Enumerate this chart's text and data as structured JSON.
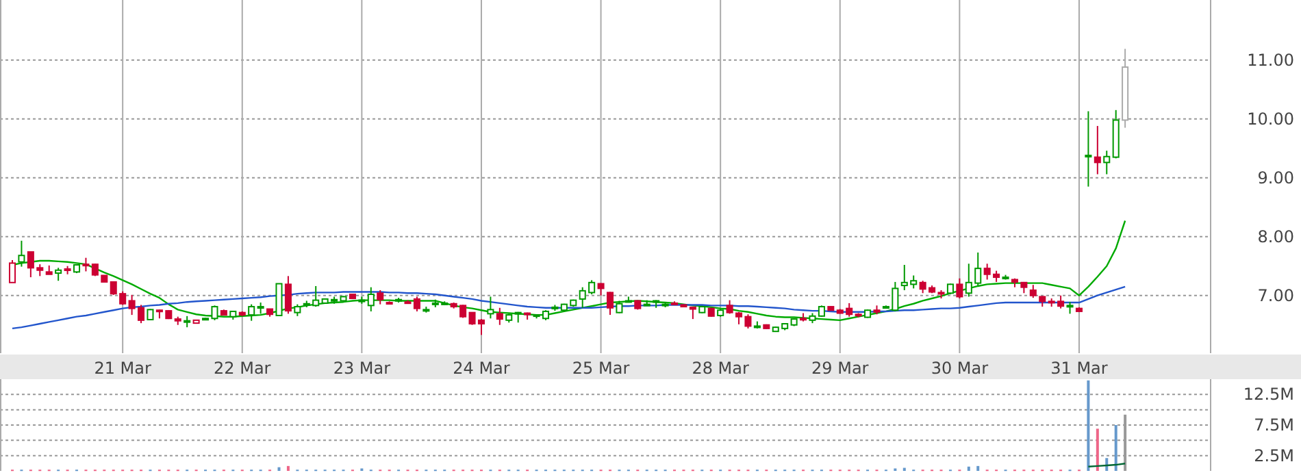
{
  "chart_data": [
    {
      "type": "candlestick",
      "categories": [
        null,
        null,
        null,
        null,
        null,
        null,
        null,
        null,
        null,
        null,
        null,
        null,
        "21 Mar",
        null,
        null,
        null,
        null,
        null,
        null,
        null,
        null,
        null,
        null,
        null,
        null,
        "22 Mar",
        null,
        null,
        null,
        null,
        null,
        null,
        null,
        null,
        null,
        null,
        null,
        null,
        "23 Mar",
        null,
        null,
        null,
        null,
        null,
        null,
        null,
        null,
        null,
        null,
        null,
        null,
        "24 Mar",
        null,
        null,
        null,
        null,
        null,
        null,
        null,
        null,
        null,
        null,
        null,
        null,
        "25 Mar",
        null,
        null,
        null,
        null,
        null,
        null,
        null,
        null,
        null,
        null,
        null,
        null,
        "28 Mar",
        null,
        null,
        null,
        null,
        null,
        null,
        null,
        null,
        null,
        null,
        null,
        null,
        "29 Mar",
        null,
        null,
        null,
        null,
        null,
        null,
        null,
        null,
        null,
        null,
        null,
        null,
        "30 Mar",
        null,
        null,
        null,
        null,
        null,
        null,
        null,
        null,
        null,
        null,
        null,
        null,
        "31 Mar",
        null,
        null,
        null,
        null,
        null,
        null,
        null,
        null,
        null,
        null,
        null,
        null,
        null,
        null
      ],
      "ohlc": [
        [
          7.22,
          7.6,
          7.22,
          7.55
        ],
        [
          7.57,
          7.93,
          7.49,
          7.68
        ],
        [
          7.74,
          7.74,
          7.31,
          7.47
        ],
        [
          7.47,
          7.53,
          7.33,
          7.43
        ],
        [
          7.4,
          7.51,
          7.36,
          7.36
        ],
        [
          7.38,
          7.47,
          7.25,
          7.43
        ],
        [
          7.45,
          7.5,
          7.36,
          7.43
        ],
        [
          7.4,
          7.53,
          7.38,
          7.52
        ],
        [
          7.53,
          7.64,
          7.41,
          7.51
        ],
        [
          7.53,
          7.54,
          7.33,
          7.35
        ],
        [
          7.34,
          7.34,
          7.23,
          7.23
        ],
        [
          7.23,
          7.23,
          7.01,
          7.03
        ],
        [
          7.03,
          7.07,
          6.84,
          6.86
        ],
        [
          6.91,
          7.01,
          6.67,
          6.78
        ],
        [
          6.79,
          6.84,
          6.53,
          6.58
        ],
        [
          6.59,
          6.77,
          6.58,
          6.76
        ],
        [
          6.75,
          6.76,
          6.61,
          6.73
        ],
        [
          6.74,
          6.75,
          6.6,
          6.61
        ],
        [
          6.6,
          6.64,
          6.5,
          6.57
        ],
        [
          6.55,
          6.65,
          6.46,
          6.57
        ],
        [
          6.53,
          6.58,
          6.53,
          6.58
        ],
        [
          6.61,
          6.62,
          6.6,
          6.61
        ],
        [
          6.61,
          6.83,
          6.58,
          6.81
        ],
        [
          6.74,
          6.76,
          6.66,
          6.67
        ],
        [
          6.64,
          6.74,
          6.59,
          6.73
        ],
        [
          6.71,
          6.73,
          6.65,
          6.67
        ],
        [
          6.67,
          6.85,
          6.57,
          6.81
        ],
        [
          6.8,
          6.88,
          6.69,
          6.81
        ],
        [
          6.77,
          6.77,
          6.64,
          6.68
        ],
        [
          6.66,
          7.2,
          6.66,
          7.2
        ],
        [
          7.19,
          7.33,
          6.69,
          6.74
        ],
        [
          6.71,
          6.85,
          6.65,
          6.81
        ],
        [
          6.84,
          6.91,
          6.8,
          6.86
        ],
        [
          6.83,
          7.16,
          6.81,
          6.92
        ],
        [
          6.87,
          6.95,
          6.86,
          6.94
        ],
        [
          6.92,
          6.98,
          6.86,
          6.93
        ],
        [
          6.91,
          6.99,
          6.9,
          6.98
        ],
        [
          7.02,
          7.02,
          6.95,
          6.95
        ],
        [
          6.91,
          6.98,
          6.86,
          6.92
        ],
        [
          6.83,
          7.14,
          6.73,
          7.02
        ],
        [
          7.04,
          7.09,
          6.85,
          6.93
        ],
        [
          6.88,
          6.9,
          6.85,
          6.87
        ],
        [
          6.92,
          6.96,
          6.88,
          6.93
        ],
        [
          6.89,
          6.92,
          6.86,
          6.88
        ],
        [
          6.94,
          6.98,
          6.73,
          6.78
        ],
        [
          6.74,
          6.81,
          6.71,
          6.76
        ],
        [
          6.85,
          6.93,
          6.8,
          6.87
        ],
        [
          6.86,
          6.9,
          6.84,
          6.87
        ],
        [
          6.86,
          6.88,
          6.78,
          6.81
        ],
        [
          6.83,
          6.84,
          6.62,
          6.64
        ],
        [
          6.71,
          6.71,
          6.5,
          6.52
        ],
        [
          6.58,
          6.6,
          6.33,
          6.52
        ],
        [
          6.69,
          6.98,
          6.61,
          6.76
        ],
        [
          6.69,
          6.79,
          6.5,
          6.6
        ],
        [
          6.58,
          6.69,
          6.54,
          6.67
        ],
        [
          6.7,
          6.72,
          6.54,
          6.71
        ],
        [
          6.7,
          6.71,
          6.59,
          6.68
        ],
        [
          6.66,
          6.68,
          6.61,
          6.67
        ],
        [
          6.61,
          6.75,
          6.58,
          6.73
        ],
        [
          6.79,
          6.84,
          6.74,
          6.8
        ],
        [
          6.75,
          6.86,
          6.73,
          6.85
        ],
        [
          6.83,
          6.93,
          6.81,
          6.92
        ],
        [
          6.94,
          7.14,
          6.79,
          7.08
        ],
        [
          7.05,
          7.26,
          7.02,
          7.22
        ],
        [
          7.2,
          7.21,
          7.0,
          7.12
        ],
        [
          7.05,
          7.06,
          6.67,
          6.79
        ],
        [
          6.71,
          6.91,
          6.7,
          6.86
        ],
        [
          6.9,
          6.98,
          6.88,
          6.91
        ],
        [
          6.91,
          6.92,
          6.76,
          6.78
        ],
        [
          6.84,
          6.92,
          6.83,
          6.85
        ],
        [
          6.9,
          6.92,
          6.79,
          6.91
        ],
        [
          6.84,
          6.89,
          6.8,
          6.85
        ],
        [
          6.87,
          6.9,
          6.84,
          6.86
        ],
        [
          6.84,
          6.85,
          6.8,
          6.81
        ],
        [
          6.8,
          6.81,
          6.6,
          6.77
        ],
        [
          6.71,
          6.82,
          6.7,
          6.81
        ],
        [
          6.78,
          6.79,
          6.64,
          6.65
        ],
        [
          6.66,
          6.77,
          6.64,
          6.75
        ],
        [
          6.83,
          6.92,
          6.69,
          6.71
        ],
        [
          6.7,
          6.72,
          6.51,
          6.64
        ],
        [
          6.64,
          6.68,
          6.44,
          6.48
        ],
        [
          6.47,
          6.56,
          6.44,
          6.48
        ],
        [
          6.5,
          6.51,
          6.43,
          6.44
        ],
        [
          6.39,
          6.47,
          6.38,
          6.46
        ],
        [
          6.44,
          6.53,
          6.41,
          6.52
        ],
        [
          6.5,
          6.61,
          6.48,
          6.6
        ],
        [
          6.61,
          6.7,
          6.56,
          6.59
        ],
        [
          6.58,
          6.7,
          6.53,
          6.65
        ],
        [
          6.65,
          6.83,
          6.64,
          6.81
        ],
        [
          6.81,
          6.82,
          6.74,
          6.75
        ],
        [
          6.75,
          6.77,
          6.69,
          6.7
        ],
        [
          6.78,
          6.87,
          6.64,
          6.68
        ],
        [
          6.68,
          6.7,
          6.63,
          6.67
        ],
        [
          6.63,
          6.76,
          6.62,
          6.75
        ],
        [
          6.75,
          6.83,
          6.68,
          6.72
        ],
        [
          6.8,
          6.83,
          6.78,
          6.81
        ],
        [
          6.75,
          7.23,
          6.73,
          7.12
        ],
        [
          7.17,
          7.52,
          7.09,
          7.22
        ],
        [
          7.19,
          7.34,
          7.12,
          7.25
        ],
        [
          7.22,
          7.25,
          7.04,
          7.11
        ],
        [
          7.13,
          7.17,
          7.04,
          7.06
        ],
        [
          7.05,
          7.09,
          6.95,
          7.03
        ],
        [
          7.04,
          7.2,
          7.02,
          7.19
        ],
        [
          7.19,
          7.29,
          6.95,
          6.98
        ],
        [
          7.04,
          7.54,
          6.98,
          7.22
        ],
        [
          7.21,
          7.73,
          7.17,
          7.46
        ],
        [
          7.46,
          7.54,
          7.27,
          7.36
        ],
        [
          7.36,
          7.42,
          7.23,
          7.31
        ],
        [
          7.3,
          7.35,
          7.27,
          7.31
        ],
        [
          7.27,
          7.29,
          7.14,
          7.23
        ],
        [
          7.22,
          7.23,
          7.04,
          7.14
        ],
        [
          7.09,
          7.18,
          6.96,
          7.0
        ],
        [
          6.98,
          6.99,
          6.81,
          6.9
        ],
        [
          6.9,
          6.95,
          6.81,
          6.89
        ],
        [
          6.9,
          7.0,
          6.78,
          6.82
        ],
        [
          6.82,
          6.89,
          6.69,
          6.83
        ],
        [
          6.78,
          6.8,
          6.72,
          6.73
        ],
        [
          9.36,
          10.13,
          8.85,
          9.38
        ],
        [
          9.35,
          9.88,
          9.06,
          9.26
        ],
        [
          9.26,
          9.46,
          9.06,
          9.36
        ],
        [
          9.35,
          10.15,
          9.33,
          9.98
        ],
        [
          9.98,
          11.19,
          9.85,
          10.88
        ],
        null,
        null,
        null,
        null,
        null,
        null,
        null,
        null,
        null
      ],
      "colors": [
        "#cc0033",
        "#009900",
        "#cc0033",
        "#cc0033",
        "#cc0033",
        "#009900",
        "#cc0033",
        "#009900",
        "#cc0033",
        "#cc0033",
        "#cc0033",
        "#cc0033",
        "#cc0033",
        "#cc0033",
        "#cc0033",
        "#009900",
        "#cc0033",
        "#cc0033",
        "#cc0033",
        "#009900",
        "#cc0033",
        "#009900",
        "#009900",
        "#cc0033",
        "#009900",
        "#cc0033",
        "#009900",
        "#009900",
        "#cc0033",
        "#009900",
        "#cc0033",
        "#009900",
        "#009900",
        "#009900",
        "#009900",
        "#009900",
        "#009900",
        "#cc0033",
        "#009900",
        "#009900",
        "#cc0033",
        "#cc0033",
        "#009900",
        "#cc0033",
        "#cc0033",
        "#009900",
        "#009900",
        "#009900",
        "#cc0033",
        "#cc0033",
        "#cc0033",
        "#cc0033",
        "#009900",
        "#cc0033",
        "#009900",
        "#009900",
        "#cc0033",
        "#009900",
        "#009900",
        "#009900",
        "#009900",
        "#009900",
        "#009900",
        "#009900",
        "#cc0033",
        "#cc0033",
        "#009900",
        "#009900",
        "#cc0033",
        "#009900",
        "#009900",
        "#009900",
        "#cc0033",
        "#cc0033",
        "#cc0033",
        "#009900",
        "#cc0033",
        "#009900",
        "#cc0033",
        "#cc0033",
        "#cc0033",
        "#009900",
        "#cc0033",
        "#009900",
        "#009900",
        "#009900",
        "#cc0033",
        "#009900",
        "#009900",
        "#cc0033",
        "#cc0033",
        "#cc0033",
        "#cc0033",
        "#009900",
        "#cc0033",
        "#009900",
        "#009900",
        "#009900",
        "#009900",
        "#cc0033",
        "#cc0033",
        "#cc0033",
        "#009900",
        "#cc0033",
        "#009900",
        "#009900",
        "#cc0033",
        "#cc0033",
        "#009900",
        "#cc0033",
        "#cc0033",
        "#cc0033",
        "#cc0033",
        "#cc0033",
        "#cc0033",
        "#009900",
        "#cc0033",
        "#009900",
        "#cc0033",
        "#009900",
        "#009900",
        "#aaaaaa",
        null,
        null,
        null,
        null,
        null,
        null,
        null,
        null,
        null
      ],
      "series": [
        {
          "type": "line",
          "color": "#00aa00",
          "values": [
            7.52,
            7.55,
            7.57,
            7.59,
            7.59,
            7.58,
            7.57,
            7.55,
            7.53,
            7.46,
            7.39,
            7.33,
            7.26,
            7.19,
            7.11,
            7.03,
            6.96,
            6.85,
            6.76,
            6.72,
            6.68,
            6.66,
            6.65,
            6.64,
            6.64,
            6.65,
            6.66,
            6.67,
            6.7,
            6.74,
            6.78,
            6.8,
            6.83,
            6.85,
            6.87,
            6.88,
            6.89,
            6.91,
            6.92,
            6.92,
            6.92,
            6.92,
            6.91,
            6.91,
            6.91,
            6.91,
            6.91,
            6.87,
            6.83,
            6.8,
            6.78,
            6.75,
            6.72,
            6.71,
            6.7,
            6.69,
            6.68,
            6.67,
            6.67,
            6.7,
            6.73,
            6.76,
            6.79,
            6.82,
            6.85,
            6.88,
            6.89,
            6.9,
            6.91,
            6.9,
            6.89,
            6.88,
            6.87,
            6.85,
            6.83,
            6.82,
            6.8,
            6.78,
            6.77,
            6.74,
            6.72,
            6.69,
            6.66,
            6.64,
            6.63,
            6.63,
            6.62,
            6.61,
            6.6,
            6.59,
            6.58,
            6.61,
            6.64,
            6.67,
            6.7,
            6.73,
            6.77,
            6.82,
            6.86,
            6.91,
            6.95,
            6.99,
            7.04,
            7.08,
            7.12,
            7.16,
            7.19,
            7.2,
            7.21,
            7.21,
            7.21,
            7.21,
            7.21,
            7.18,
            7.15,
            7.12,
            7.0,
            7.15,
            7.32,
            7.5,
            7.8,
            8.27,
            null,
            null,
            null,
            null,
            null,
            null,
            null,
            null,
            null
          ]
        },
        {
          "type": "line",
          "color": "#2255cc",
          "values": [
            6.44,
            6.46,
            6.49,
            6.52,
            6.55,
            6.58,
            6.61,
            6.64,
            6.66,
            6.69,
            6.72,
            6.75,
            6.78,
            6.8,
            6.81,
            6.83,
            6.84,
            6.86,
            6.87,
            6.89,
            6.9,
            6.91,
            6.92,
            6.93,
            6.94,
            6.95,
            6.96,
            6.97,
            6.99,
            7.0,
            7.01,
            7.03,
            7.04,
            7.05,
            7.05,
            7.05,
            7.06,
            7.06,
            7.06,
            7.06,
            7.06,
            7.05,
            7.05,
            7.04,
            7.04,
            7.03,
            7.02,
            7.0,
            6.98,
            6.96,
            6.94,
            6.91,
            6.89,
            6.87,
            6.85,
            6.83,
            6.81,
            6.8,
            6.79,
            6.79,
            6.79,
            6.79,
            6.79,
            6.79,
            6.8,
            6.81,
            6.82,
            6.82,
            6.83,
            6.83,
            6.83,
            6.84,
            6.84,
            6.84,
            6.84,
            6.84,
            6.83,
            6.83,
            6.83,
            6.82,
            6.82,
            6.81,
            6.8,
            6.79,
            6.78,
            6.76,
            6.75,
            6.74,
            6.74,
            6.73,
            6.72,
            6.72,
            6.72,
            6.72,
            6.73,
            6.73,
            6.74,
            6.75,
            6.75,
            6.76,
            6.77,
            6.78,
            6.78,
            6.79,
            6.81,
            6.83,
            6.85,
            6.87,
            6.88,
            6.88,
            6.88,
            6.88,
            6.88,
            6.88,
            6.88,
            6.88,
            6.88,
            6.94,
            7.0,
            7.05,
            7.1,
            7.15,
            null,
            null,
            null,
            null,
            null,
            null,
            null,
            null,
            null
          ]
        }
      ],
      "ylim": [
        6.02,
        12.02
      ],
      "yticks": [
        {
          "value": 7,
          "label": "7.00"
        },
        {
          "value": 8,
          "label": "8.00"
        },
        {
          "value": 9,
          "label": "9.00"
        },
        {
          "value": 10,
          "label": "10.00"
        },
        {
          "value": 11,
          "label": "11.00"
        }
      ],
      "grid": true
    },
    {
      "type": "bar",
      "categories": [
        null,
        null,
        null,
        null,
        null,
        null,
        null,
        null,
        null,
        null,
        null,
        null,
        null,
        null,
        null,
        null,
        null,
        null,
        null,
        null,
        null,
        null,
        null,
        null,
        null,
        null,
        null,
        null,
        null,
        null,
        null,
        null,
        null,
        null,
        null,
        null,
        null,
        null,
        null,
        null,
        null,
        null,
        null,
        null,
        null,
        null,
        null,
        null,
        null,
        null,
        null,
        null,
        null,
        null,
        null,
        null,
        null,
        null,
        null,
        null,
        null,
        null,
        null,
        null,
        null,
        null,
        null,
        null,
        null,
        null,
        null,
        null,
        null,
        null,
        null,
        null,
        null,
        null,
        null,
        null,
        null,
        null,
        null,
        null,
        null,
        null,
        null,
        null,
        null,
        null,
        null,
        null,
        null,
        null,
        null,
        null,
        null,
        null,
        null,
        null,
        null,
        null,
        null,
        null,
        null,
        null,
        null,
        null,
        null,
        null,
        null,
        null,
        null,
        null,
        null,
        null,
        null,
        null,
        null,
        null,
        null,
        null,
        null,
        null,
        null,
        null,
        null,
        null,
        null,
        null,
        null
      ],
      "series": [
        {
          "type": "bar",
          "colors": [
            "#ee6688",
            "#6699cc",
            "#ee6688",
            "#ee6688",
            "#ee6688",
            "#6699cc",
            "#ee6688",
            "#6699cc",
            "#ee6688",
            "#ee6688",
            "#ee6688",
            "#ee6688",
            "#ee6688",
            "#ee6688",
            "#ee6688",
            "#6699cc",
            "#ee6688",
            "#ee6688",
            "#ee6688",
            "#6699cc",
            "#ee6688",
            "#6699cc",
            "#6699cc",
            "#ee6688",
            "#6699cc",
            "#ee6688",
            "#6699cc",
            "#6699cc",
            "#ee6688",
            "#6699cc",
            "#ee6688",
            "#6699cc",
            "#6699cc",
            "#6699cc",
            "#6699cc",
            "#6699cc",
            "#6699cc",
            "#ee6688",
            "#6699cc",
            "#6699cc",
            "#ee6688",
            "#ee6688",
            "#6699cc",
            "#ee6688",
            "#ee6688",
            "#6699cc",
            "#6699cc",
            "#6699cc",
            "#ee6688",
            "#ee6688",
            "#ee6688",
            "#ee6688",
            "#6699cc",
            "#ee6688",
            "#6699cc",
            "#6699cc",
            "#ee6688",
            "#6699cc",
            "#6699cc",
            "#6699cc",
            "#6699cc",
            "#6699cc",
            "#6699cc",
            "#6699cc",
            "#ee6688",
            "#ee6688",
            "#6699cc",
            "#6699cc",
            "#ee6688",
            "#6699cc",
            "#6699cc",
            "#6699cc",
            "#ee6688",
            "#ee6688",
            "#ee6688",
            "#6699cc",
            "#ee6688",
            "#6699cc",
            "#ee6688",
            "#ee6688",
            "#ee6688",
            "#6699cc",
            "#ee6688",
            "#6699cc",
            "#6699cc",
            "#6699cc",
            "#ee6688",
            "#6699cc",
            "#6699cc",
            "#ee6688",
            "#ee6688",
            "#ee6688",
            "#ee6688",
            "#6699cc",
            "#ee6688",
            "#6699cc",
            "#6699cc",
            "#6699cc",
            "#6699cc",
            "#ee6688",
            "#ee6688",
            "#ee6688",
            "#6699cc",
            "#ee6688",
            "#6699cc",
            "#6699cc",
            "#ee6688",
            "#ee6688",
            "#6699cc",
            "#ee6688",
            "#ee6688",
            "#ee6688",
            "#ee6688",
            "#ee6688",
            "#ee6688",
            "#6699cc",
            "#ee6688",
            "#6699cc",
            "#ee6688",
            "#6699cc",
            "#6699cc",
            "#999999",
            null,
            null,
            null,
            null,
            null,
            null,
            null,
            null,
            null
          ],
          "values": [
            0.2,
            0.2,
            0.2,
            0.2,
            0.2,
            0.2,
            0.2,
            0.2,
            0.2,
            0.2,
            0.2,
            0.2,
            0.2,
            0.2,
            0.2,
            0.2,
            0.2,
            0.2,
            0.2,
            0.2,
            0.2,
            0.2,
            0.2,
            0.2,
            0.2,
            0.2,
            0.2,
            0.2,
            0.2,
            0.6,
            0.8,
            0.2,
            0.2,
            0.2,
            0.2,
            0.2,
            0.2,
            0.2,
            0.4,
            0.2,
            0.2,
            0.2,
            0.2,
            0.2,
            0.2,
            0.2,
            0.2,
            0.2,
            0.2,
            0.2,
            0.2,
            0.2,
            0.2,
            0.2,
            0.2,
            0.2,
            0.2,
            0.2,
            0.2,
            0.2,
            0.2,
            0.2,
            0.2,
            0.2,
            0.2,
            0.2,
            0.2,
            0.2,
            0.2,
            0.2,
            0.2,
            0.2,
            0.2,
            0.2,
            0.2,
            0.2,
            0.2,
            0.2,
            0.2,
            0.2,
            0.2,
            0.2,
            0.2,
            0.2,
            0.2,
            0.2,
            0.2,
            0.2,
            0.2,
            0.2,
            0.2,
            0.2,
            0.2,
            0.2,
            0.2,
            0.2,
            0.4,
            0.5,
            0.2,
            0.2,
            0.2,
            0.2,
            0.2,
            0.2,
            0.7,
            0.8,
            0.2,
            0.2,
            0.2,
            0.2,
            0.2,
            0.2,
            0.2,
            0.2,
            0.2,
            0.2,
            0.2,
            14.8,
            6.9,
            2.1,
            7.5,
            9.2,
            null,
            null,
            null,
            null,
            null,
            null,
            null,
            null,
            null
          ]
        },
        {
          "type": "line",
          "color": "#006633",
          "values": [
            null,
            null,
            null,
            null,
            null,
            null,
            null,
            null,
            null,
            null,
            null,
            null,
            null,
            null,
            null,
            null,
            null,
            null,
            null,
            null,
            null,
            null,
            null,
            null,
            null,
            null,
            null,
            null,
            null,
            null,
            null,
            null,
            null,
            null,
            null,
            null,
            null,
            null,
            null,
            null,
            null,
            null,
            null,
            null,
            null,
            null,
            null,
            null,
            null,
            null,
            null,
            null,
            null,
            null,
            null,
            null,
            null,
            null,
            null,
            null,
            null,
            null,
            null,
            null,
            null,
            null,
            null,
            null,
            null,
            null,
            null,
            null,
            null,
            null,
            null,
            null,
            null,
            null,
            null,
            null,
            null,
            null,
            null,
            null,
            null,
            null,
            null,
            null,
            null,
            null,
            null,
            null,
            null,
            null,
            null,
            null,
            null,
            null,
            null,
            null,
            null,
            null,
            null,
            null,
            null,
            null,
            null,
            null,
            null,
            null,
            null,
            null,
            null,
            null,
            null,
            null,
            null,
            0.7,
            0.8,
            0.9,
            1.0,
            1.2,
            null,
            null,
            null,
            null,
            null,
            null,
            null,
            null,
            null
          ]
        }
      ],
      "ylim": [
        0,
        15
      ],
      "yticks": [
        {
          "value": 2.5,
          "label": "2.5M"
        },
        {
          "value": 5,
          "label": null
        },
        {
          "value": 7.5,
          "label": "7.5M"
        },
        {
          "value": 10,
          "label": null
        },
        {
          "value": 12.5,
          "label": "12.5M"
        }
      ],
      "grid": "y",
      "tick_labels": "y"
    }
  ]
}
